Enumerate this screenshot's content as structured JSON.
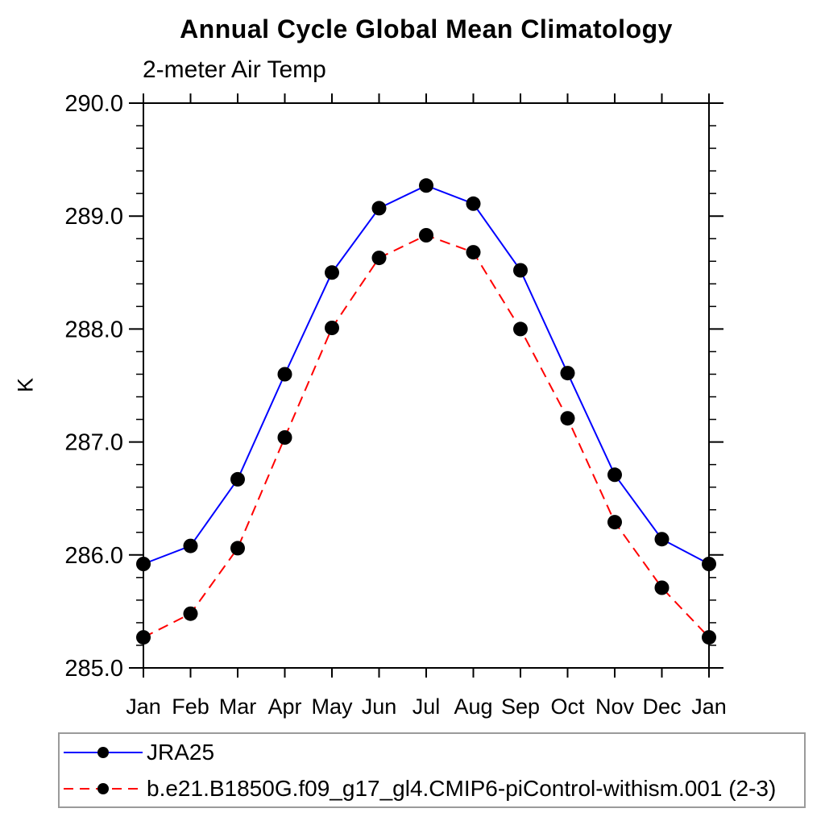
{
  "header": {
    "title": "Annual Cycle Global Mean Climatology",
    "subtitle": "2-meter Air Temp"
  },
  "chart_data": {
    "type": "line",
    "title": "Annual Cycle Global Mean Climatology",
    "subtitle": "2-meter Air Temp",
    "xlabel": "",
    "ylabel": "K",
    "x_categories": [
      "Jan",
      "Feb",
      "Mar",
      "Apr",
      "May",
      "Jun",
      "Jul",
      "Aug",
      "Sep",
      "Oct",
      "Nov",
      "Dec",
      "Jan"
    ],
    "ylim": [
      285.0,
      290.0
    ],
    "y_tick_values": [
      285.0,
      286.0,
      287.0,
      288.0,
      289.0,
      290.0
    ],
    "y_tick_labels": [
      "285.0",
      "286.0",
      "287.0",
      "288.0",
      "289.0",
      "290.0"
    ],
    "y_minor_step": 0.2,
    "grid": false,
    "legend_position": "bottom",
    "frame_color": "#000000",
    "series": [
      {
        "name": "JRA25",
        "color": "#0000ff",
        "line_style": "solid",
        "marker": "circle",
        "marker_color": "#000000",
        "values": [
          285.92,
          286.08,
          286.67,
          287.6,
          288.5,
          289.07,
          289.27,
          289.11,
          288.52,
          287.61,
          286.71,
          286.14,
          285.92
        ]
      },
      {
        "name": "b.e21.B1850G.f09_g17_gl4.CMIP6-piControl-withism.001 (2-3)",
        "color": "#ff0000",
        "line_style": "dashed",
        "marker": "circle",
        "marker_color": "#000000",
        "values": [
          285.27,
          285.48,
          286.06,
          287.04,
          288.01,
          288.63,
          288.83,
          288.68,
          288.0,
          287.21,
          286.29,
          285.71,
          285.27
        ]
      }
    ]
  }
}
